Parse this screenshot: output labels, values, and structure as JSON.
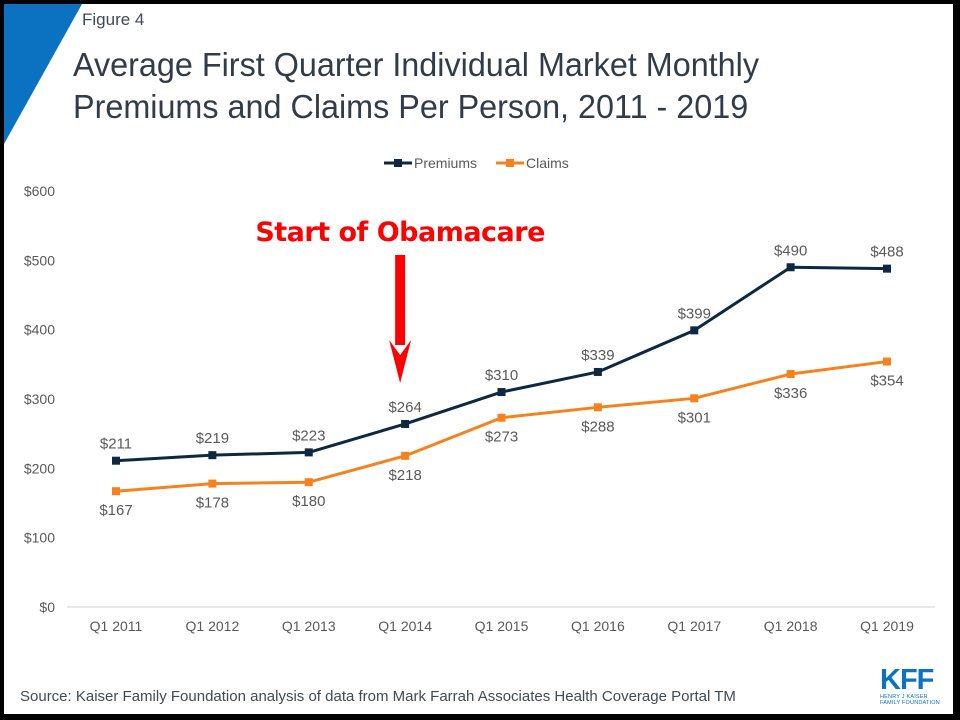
{
  "figure_label": "Figure 4",
  "title_line1": "Average First Quarter Individual Market Monthly",
  "title_line2": "Premiums and Claims Per Person, 2011 - 2019",
  "source": "Source: Kaiser Family Foundation analysis of data from Mark Farrah Associates Health Coverage Portal TM",
  "logo": {
    "mark": "KFF",
    "line1": "HENRY J KAISER",
    "line2": "FAMILY FOUNDATION"
  },
  "colors": {
    "premiums": "#0e2841",
    "claims": "#f5821f",
    "annotation": "#ff0000",
    "brand": "#0a72c0"
  },
  "chart_data": {
    "type": "line",
    "title": "Average First Quarter Individual Market Monthly Premiums and Claims Per Person, 2011 - 2019",
    "xlabel": "",
    "ylabel": "",
    "categories": [
      "Q1 2011",
      "Q1 2012",
      "Q1 2013",
      "Q1 2014",
      "Q1 2015",
      "Q1 2016",
      "Q1 2017",
      "Q1 2018",
      "Q1 2019"
    ],
    "series": [
      {
        "name": "Premiums",
        "values": [
          211,
          219,
          223,
          264,
          310,
          339,
          399,
          490,
          488
        ],
        "labels": [
          "$211",
          "$219",
          "$223",
          "$264",
          "$310",
          "$339",
          "$399",
          "$490",
          "$488"
        ],
        "label_position": "above"
      },
      {
        "name": "Claims",
        "values": [
          167,
          178,
          180,
          218,
          273,
          288,
          301,
          336,
          354
        ],
        "labels": [
          "$167",
          "$178",
          "$180",
          "$218",
          "$273",
          "$288",
          "$301",
          "$336",
          "$354"
        ],
        "label_position": "below"
      }
    ],
    "ylim": [
      0,
      600
    ],
    "yticks": [
      0,
      100,
      200,
      300,
      400,
      500,
      600
    ],
    "ytick_labels": [
      "$0",
      "$100",
      "$200",
      "$300",
      "$400",
      "$500",
      "$600"
    ],
    "grid": false,
    "legend": {
      "position": "top-center",
      "entries": [
        "Premiums",
        "Claims"
      ]
    },
    "annotation": {
      "text": "Start of Obamacare",
      "category": "Q1 2014",
      "marker": "down-arrow"
    }
  }
}
